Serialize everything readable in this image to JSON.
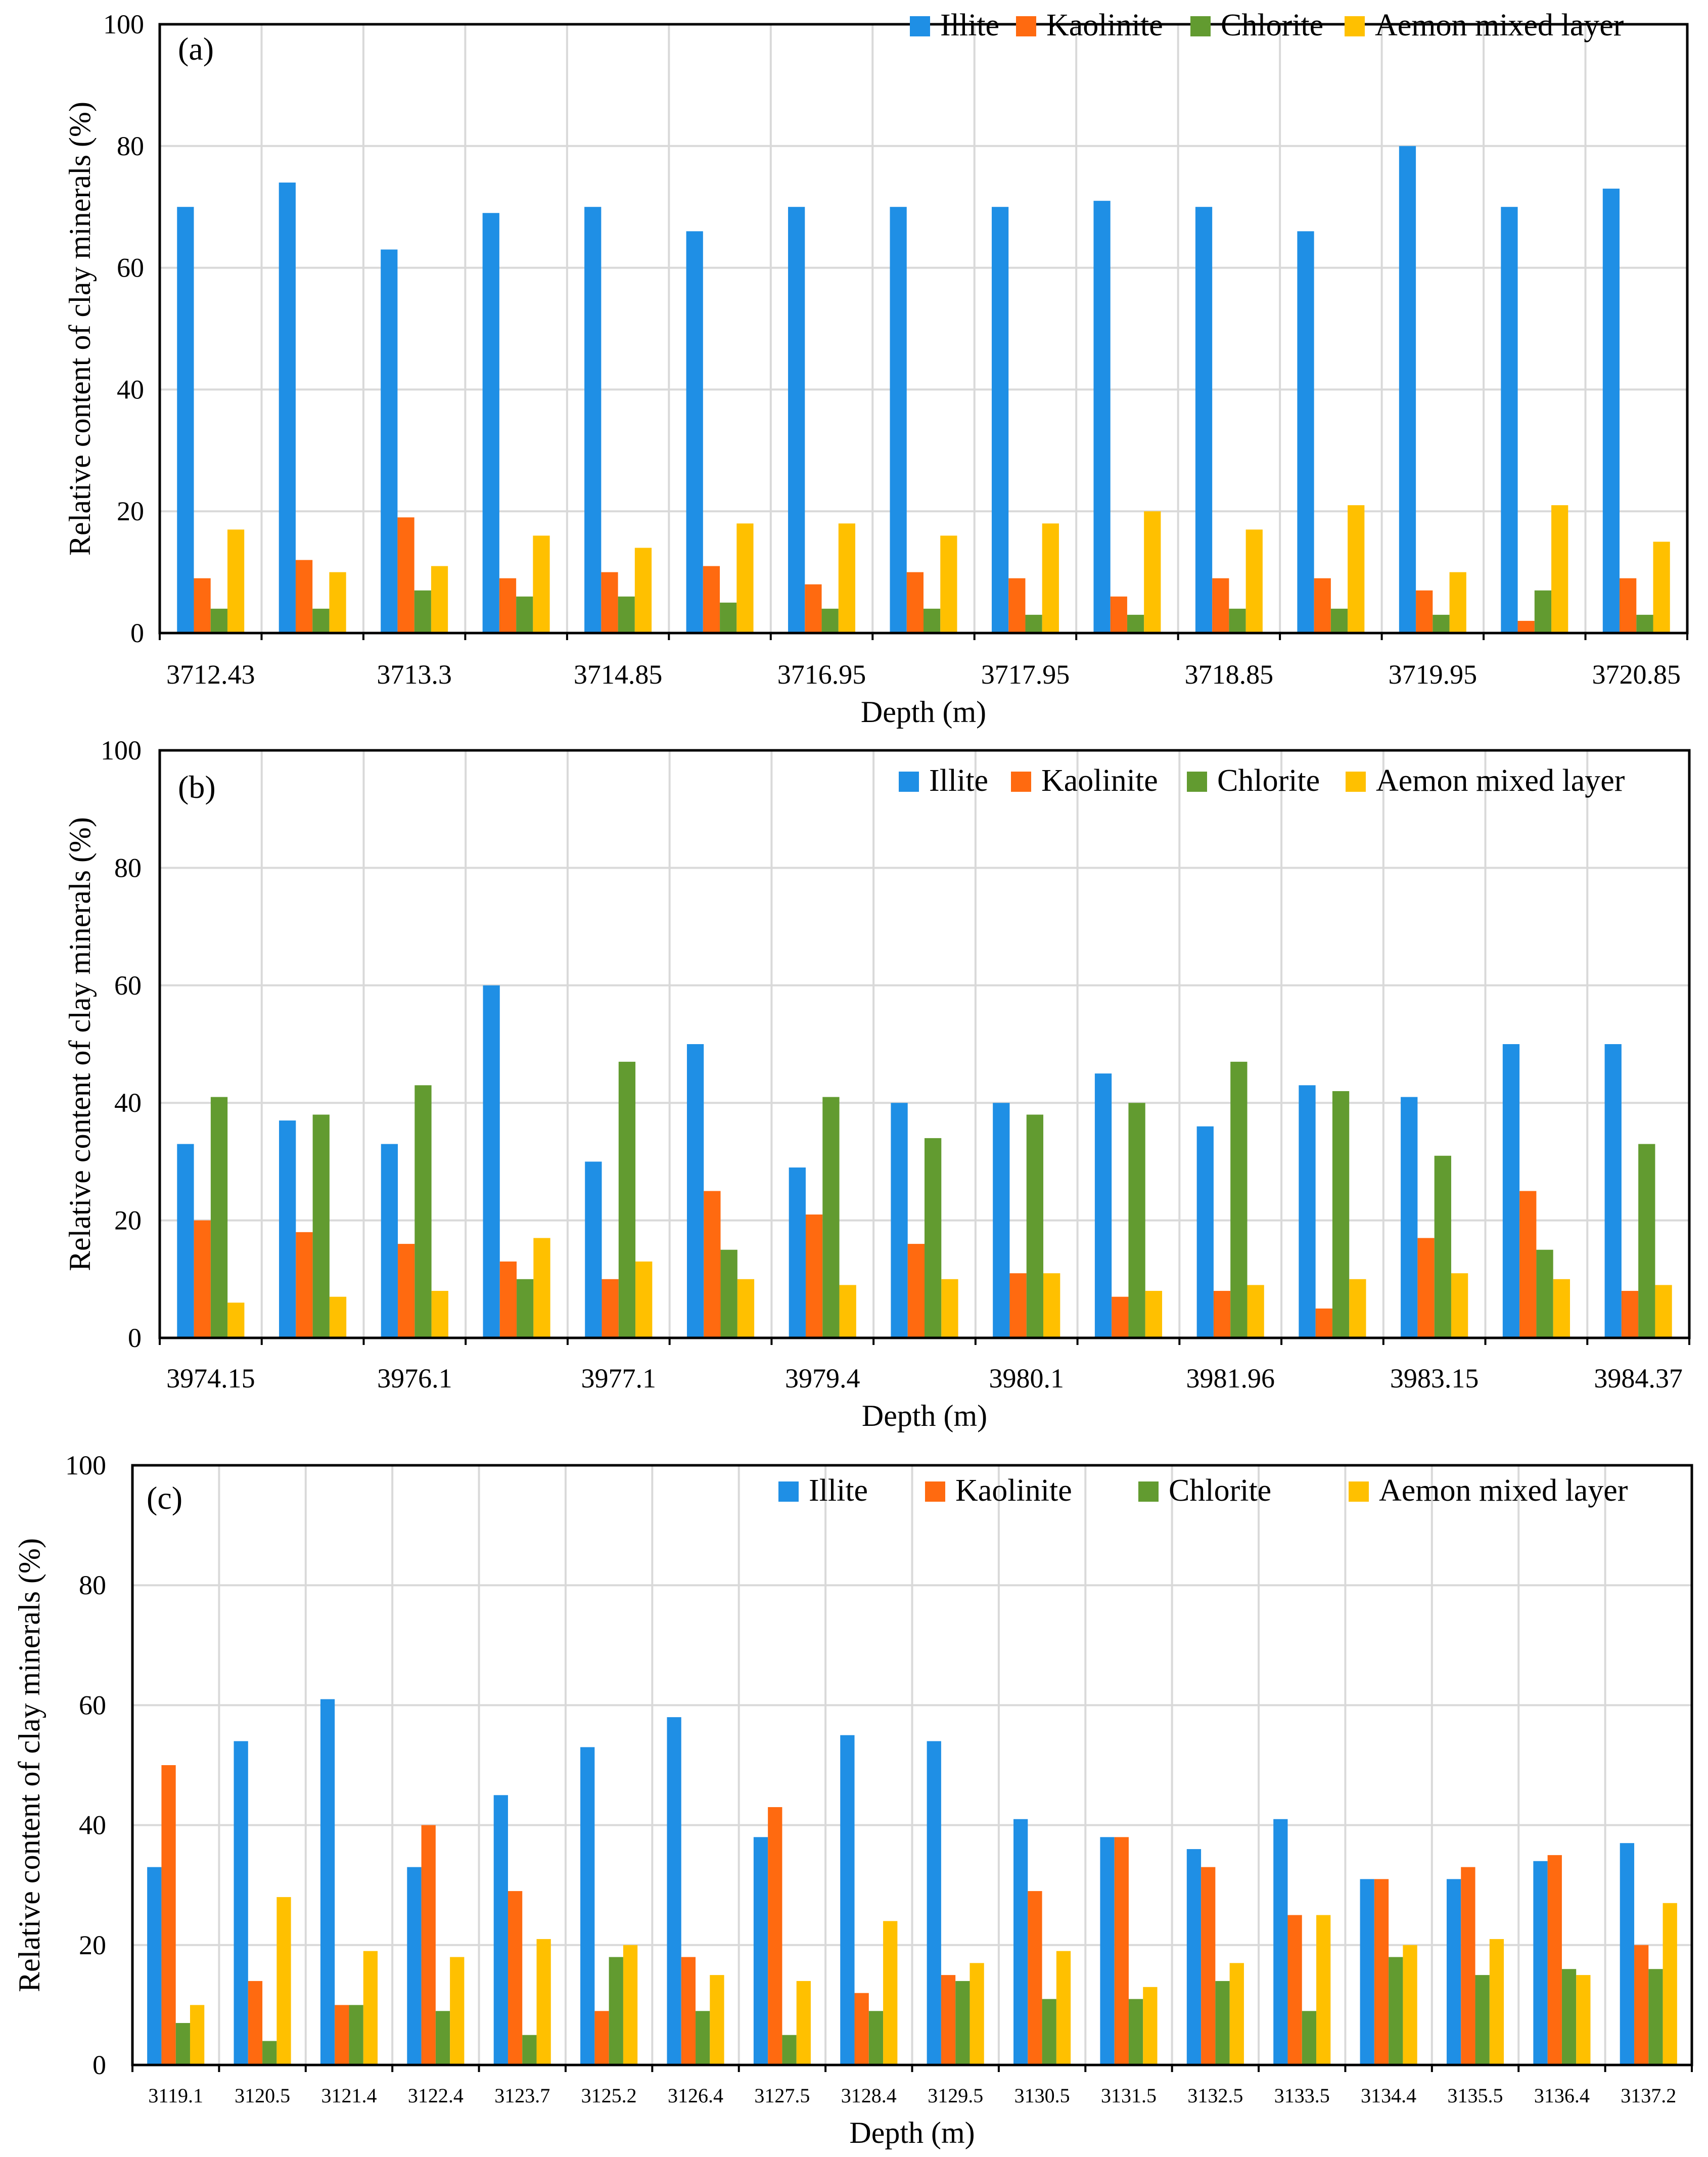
{
  "colors": {
    "illite": "#1F8FE5",
    "kaolinite": "#FF6A10",
    "chlorite": "#629B30",
    "mixed": "#FFC000",
    "grid": "#d9d9d9"
  },
  "legend": [
    "Illite",
    "Kaolinite",
    "Chlorite",
    "Aemon mixed layer"
  ],
  "chart_data": [
    {
      "type": "bar",
      "panel_label": "(a)",
      "xlabel": "Depth (m)",
      "ylabel": "Relative content of clay minerals (%)",
      "ylim": [
        0,
        100
      ],
      "yticks": [
        "0",
        "20",
        "40",
        "60",
        "80",
        "100"
      ],
      "n_groups": 15,
      "tick_labels": [
        "3712.43",
        "3713.3",
        "3714.85",
        "3716.95",
        "3717.95",
        "3718.85",
        "3719.95",
        "3720.85"
      ],
      "tick_positions": [
        0,
        2,
        4,
        6,
        8,
        10,
        12,
        14
      ],
      "series": [
        {
          "name": "Illite",
          "values": [
            70,
            74,
            63,
            69,
            70,
            66,
            70,
            70,
            70,
            71,
            70,
            66,
            80,
            70,
            73
          ]
        },
        {
          "name": "Kaolinite",
          "values": [
            9,
            12,
            19,
            9,
            10,
            11,
            8,
            10,
            9,
            6,
            9,
            9,
            7,
            2,
            9
          ]
        },
        {
          "name": "Chlorite",
          "values": [
            4,
            4,
            7,
            6,
            6,
            5,
            4,
            4,
            3,
            3,
            4,
            4,
            3,
            7,
            3
          ]
        },
        {
          "name": "Aemon mixed layer",
          "values": [
            17,
            10,
            11,
            16,
            14,
            18,
            18,
            16,
            18,
            20,
            17,
            21,
            10,
            21,
            15
          ]
        }
      ]
    },
    {
      "type": "bar",
      "panel_label": "(b)",
      "xlabel": "Depth (m)",
      "ylabel": "Relative content of clay minerals (%)",
      "ylim": [
        0,
        100
      ],
      "yticks": [
        "0",
        "20",
        "40",
        "60",
        "80",
        "100"
      ],
      "n_groups": 15,
      "tick_labels": [
        "3974.15",
        "3976.1",
        "3977.1",
        "3979.4",
        "3980.1",
        "3981.96",
        "3983.15",
        "3984.37"
      ],
      "tick_positions": [
        0,
        2,
        4,
        6,
        8,
        10,
        12,
        14
      ],
      "series": [
        {
          "name": "Illite",
          "values": [
            33,
            37,
            33,
            60,
            30,
            50,
            29,
            40,
            40,
            45,
            36,
            43,
            41,
            50,
            50
          ]
        },
        {
          "name": "Kaolinite",
          "values": [
            20,
            18,
            16,
            13,
            10,
            25,
            21,
            16,
            11,
            7,
            8,
            5,
            17,
            25,
            8
          ]
        },
        {
          "name": "Chlorite",
          "values": [
            41,
            38,
            43,
            10,
            47,
            15,
            41,
            34,
            38,
            40,
            47,
            42,
            31,
            15,
            33
          ]
        },
        {
          "name": "Aemon mixed layer",
          "values": [
            6,
            7,
            8,
            17,
            13,
            10,
            9,
            10,
            11,
            8,
            9,
            10,
            11,
            10,
            9
          ]
        }
      ]
    },
    {
      "type": "bar",
      "panel_label": "(c)",
      "xlabel": "Depth (m)",
      "ylabel": "Relative content of clay minerals (%)",
      "ylim": [
        0,
        100
      ],
      "yticks": [
        "0",
        "20",
        "40",
        "60",
        "80",
        "100"
      ],
      "n_groups": 18,
      "tick_labels": [
        "3119.1",
        "3120.5",
        "3121.4",
        "3122.4",
        "3123.7",
        "3125.2",
        "3126.4",
        "3127.5",
        "3128.4",
        "3129.5",
        "3130.5",
        "3131.5",
        "3132.5",
        "3133.5",
        "3134.4",
        "3135.5",
        "3136.4",
        "3137.2"
      ],
      "tick_positions": [
        0,
        1,
        2,
        3,
        4,
        5,
        6,
        7,
        8,
        9,
        10,
        11,
        12,
        13,
        14,
        15,
        16,
        17
      ],
      "series": [
        {
          "name": "Illite",
          "values": [
            33,
            54,
            61,
            33,
            45,
            53,
            58,
            38,
            55,
            54,
            41,
            38,
            36,
            41,
            31,
            31,
            34,
            37
          ]
        },
        {
          "name": "Kaolinite",
          "values": [
            50,
            14,
            10,
            40,
            29,
            9,
            18,
            43,
            12,
            15,
            29,
            38,
            33,
            25,
            31,
            33,
            35,
            20
          ]
        },
        {
          "name": "Chlorite",
          "values": [
            7,
            4,
            10,
            9,
            5,
            18,
            9,
            5,
            9,
            14,
            11,
            11,
            14,
            9,
            18,
            15,
            16,
            16
          ]
        },
        {
          "name": "Aemon mixed layer",
          "values": [
            10,
            28,
            19,
            18,
            21,
            20,
            15,
            14,
            24,
            17,
            19,
            13,
            17,
            25,
            20,
            21,
            15,
            27
          ]
        }
      ]
    }
  ]
}
